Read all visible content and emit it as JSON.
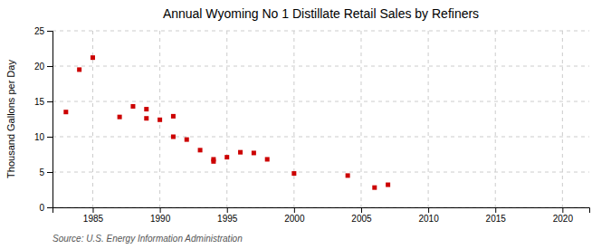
{
  "chart_data": {
    "type": "scatter",
    "title": "Annual Wyoming No 1 Distillate Retail Sales by Refiners",
    "ylabel": "Thousand Gallons per Day",
    "source": "Source: U.S. Energy Information Administration",
    "color": "#cc0000",
    "marker": "square",
    "grid": true,
    "xlim": [
      1982,
      2022
    ],
    "ylim": [
      0,
      25
    ],
    "xticks": [
      1985,
      1990,
      1995,
      2000,
      2005,
      2010,
      2015,
      2020
    ],
    "yticks": [
      0,
      5,
      10,
      15,
      20,
      25
    ],
    "x": [
      1983,
      1984,
      1985,
      1987,
      1988,
      1989,
      1989,
      1990,
      1991,
      1991,
      1992,
      1993,
      1994,
      1994,
      1995,
      1996,
      1997,
      1998,
      2000,
      2004,
      2006,
      2007
    ],
    "y": [
      13.5,
      19.5,
      21.2,
      12.8,
      14.3,
      13.9,
      12.6,
      12.4,
      12.9,
      10.0,
      9.6,
      8.1,
      6.8,
      6.5,
      7.1,
      7.8,
      7.7,
      6.8,
      4.8,
      4.5,
      2.8,
      3.2
    ]
  }
}
